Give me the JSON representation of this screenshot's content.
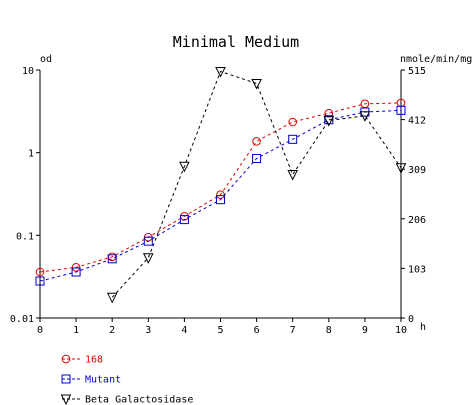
{
  "chart_data": {
    "type": "line",
    "title": "Minimal Medium",
    "x_unit": "h",
    "y_left_unit": "od",
    "y_right_unit": "nmole/min/mg",
    "x": [
      0,
      1,
      2,
      3,
      4,
      5,
      6,
      7,
      8,
      9,
      10
    ],
    "x_ticks": [
      "0",
      "1",
      "2",
      "3",
      "4",
      "5",
      "6",
      "7",
      "8",
      "9",
      "10"
    ],
    "x_range": [
      0,
      10
    ],
    "y_left_scale": "log",
    "y_left_range": [
      0.01,
      10
    ],
    "y_left_ticks": [
      "0.01",
      "0.1",
      "1",
      "10"
    ],
    "y_right_range": [
      0,
      515
    ],
    "y_right_ticks": [
      "0",
      "103",
      "206",
      "309",
      "412",
      "515"
    ],
    "grid": false,
    "legend_position": "bottom-left",
    "series": [
      {
        "name": "168",
        "axis": "left",
        "color": "#e00000",
        "marker": "circle",
        "x": [
          0,
          1,
          2,
          3,
          4,
          5,
          6,
          7,
          8,
          9,
          10
        ],
        "values": [
          0.036,
          0.041,
          0.055,
          0.095,
          0.17,
          0.31,
          1.37,
          2.35,
          3.0,
          3.9,
          4.0
        ]
      },
      {
        "name": "Mutant",
        "axis": "left",
        "color": "#0000cc",
        "marker": "square",
        "x": [
          0,
          1,
          2,
          3,
          4,
          5,
          6,
          7,
          8,
          9,
          10
        ],
        "values": [
          0.028,
          0.036,
          0.052,
          0.085,
          0.155,
          0.27,
          0.85,
          1.45,
          2.5,
          3.1,
          3.25
        ]
      },
      {
        "name": "Beta Galactosidase",
        "axis": "right",
        "color": "#000000",
        "marker": "triangle-down",
        "x": [
          2,
          3,
          4,
          5,
          6,
          7,
          8,
          9,
          10
        ],
        "values": [
          43,
          125,
          315,
          512,
          487,
          298,
          410,
          420,
          312
        ]
      }
    ]
  }
}
